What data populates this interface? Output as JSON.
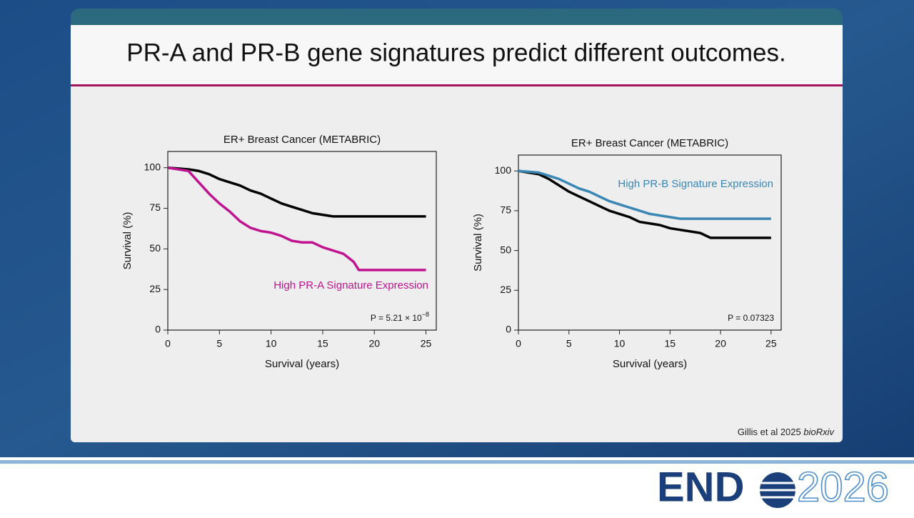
{
  "slide": {
    "title": "PR-A and PR-B gene signatures predict different outcomes.",
    "citation": {
      "authors": "Gillis et al 2025",
      "source": "bioRxiv"
    }
  },
  "logo": {
    "left": "END",
    "right": "2026"
  },
  "chart_data": [
    {
      "type": "line",
      "title": "ER+ Breast Cancer (METABRIC)",
      "xlabel": "Survival (years)",
      "ylabel": "Survival (%)",
      "xlim": [
        0,
        26
      ],
      "ylim": [
        0,
        110
      ],
      "xticks": [
        0,
        5,
        10,
        15,
        20,
        25
      ],
      "yticks": [
        0,
        25,
        50,
        75,
        100
      ],
      "p_value": {
        "text": "P = 5.21 × 10",
        "exponent": "−8"
      },
      "series": [
        {
          "color": "#000000",
          "x": [
            0,
            2,
            3,
            4,
            5,
            6,
            7,
            8,
            9,
            10,
            11,
            12,
            13,
            14,
            15,
            16,
            25
          ],
          "values": [
            100,
            99,
            98,
            96,
            93,
            91,
            89,
            86,
            84,
            81,
            78,
            76,
            74,
            72,
            71,
            70,
            70
          ]
        },
        {
          "name": "High PR-A Signature Expression",
          "color": "#c0138f",
          "x": [
            0,
            2,
            3,
            4,
            5,
            6,
            7,
            8,
            9,
            10,
            11,
            12,
            13,
            14,
            15,
            16,
            17,
            18,
            18.5,
            25
          ],
          "values": [
            100,
            98,
            91,
            84,
            78,
            73,
            67,
            63,
            61,
            60,
            58,
            55,
            54,
            54,
            51,
            49,
            47,
            42,
            37,
            37
          ]
        }
      ]
    },
    {
      "type": "line",
      "title": "ER+ Breast Cancer (METABRIC)",
      "xlabel": "Survival (years)",
      "ylabel": "Survival (%)",
      "xlim": [
        0,
        26
      ],
      "ylim": [
        0,
        110
      ],
      "xticks": [
        0,
        5,
        10,
        15,
        20,
        25
      ],
      "yticks": [
        0,
        25,
        50,
        75,
        100
      ],
      "p_value": {
        "text": "P = 0.07323"
      },
      "series": [
        {
          "color": "#000000",
          "x": [
            0,
            2,
            3,
            4,
            5,
            6,
            7,
            8,
            9,
            10,
            11,
            12,
            13,
            14,
            15,
            16,
            17,
            18,
            19,
            25
          ],
          "values": [
            100,
            98,
            95,
            91,
            87,
            84,
            81,
            78,
            75,
            73,
            71,
            68,
            67,
            66,
            64,
            63,
            62,
            61,
            58,
            58
          ]
        },
        {
          "name": "High PR-B Signature Expression",
          "color": "#3a86b4",
          "x": [
            0,
            2,
            3,
            4,
            5,
            6,
            7,
            8,
            9,
            10,
            11,
            12,
            13,
            14,
            15,
            16,
            25
          ],
          "values": [
            100,
            99,
            97,
            95,
            92,
            89,
            87,
            84,
            81,
            79,
            77,
            75,
            73,
            72,
            71,
            70,
            70
          ]
        }
      ]
    }
  ]
}
